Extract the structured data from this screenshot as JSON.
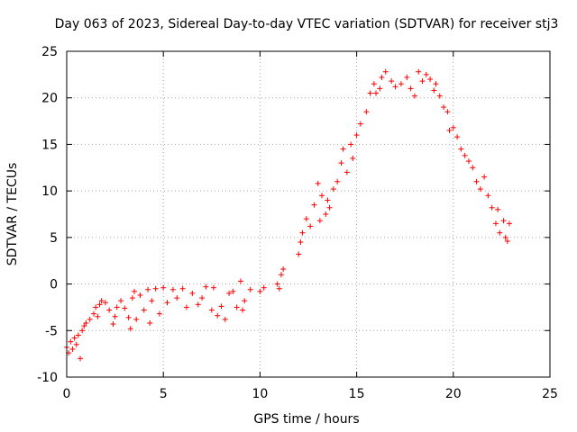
{
  "chart_data": {
    "type": "scatter",
    "title": "Day 063 of 2023, Sidereal Day-to-day VTEC variation (SDTVAR) for receiver stj3",
    "xlabel": "GPS time / hours",
    "ylabel": "SDTVAR / TECUs",
    "xlim": [
      0,
      25
    ],
    "ylim": [
      -10,
      25
    ],
    "xticks": [
      0,
      5,
      10,
      15,
      20,
      25
    ],
    "yticks": [
      -10,
      -5,
      0,
      5,
      10,
      15,
      20,
      25
    ],
    "grid": true,
    "marker": "+",
    "series_color": "#ff0000",
    "series": [
      {
        "name": "SDTVAR",
        "points": [
          [
            0.0,
            -6.8
          ],
          [
            0.1,
            -7.4
          ],
          [
            0.2,
            -6.2
          ],
          [
            0.3,
            -7.0
          ],
          [
            0.4,
            -5.8
          ],
          [
            0.5,
            -6.5
          ],
          [
            0.6,
            -5.5
          ],
          [
            0.7,
            -8.0
          ],
          [
            0.8,
            -5.0
          ],
          [
            0.9,
            -4.5
          ],
          [
            1.0,
            -4.2
          ],
          [
            1.2,
            -3.8
          ],
          [
            1.4,
            -3.2
          ],
          [
            1.5,
            -2.5
          ],
          [
            1.6,
            -3.5
          ],
          [
            1.7,
            -2.2
          ],
          [
            1.8,
            -1.8
          ],
          [
            2.0,
            -2.0
          ],
          [
            2.2,
            -2.8
          ],
          [
            2.4,
            -4.3
          ],
          [
            2.5,
            -3.5
          ],
          [
            2.6,
            -2.5
          ],
          [
            2.8,
            -1.8
          ],
          [
            3.0,
            -2.6
          ],
          [
            3.2,
            -3.6
          ],
          [
            3.3,
            -4.8
          ],
          [
            3.4,
            -1.5
          ],
          [
            3.5,
            -0.8
          ],
          [
            3.6,
            -3.8
          ],
          [
            3.8,
            -1.2
          ],
          [
            4.0,
            -2.8
          ],
          [
            4.2,
            -0.6
          ],
          [
            4.3,
            -4.2
          ],
          [
            4.4,
            -1.8
          ],
          [
            4.6,
            -0.5
          ],
          [
            4.8,
            -3.2
          ],
          [
            5.0,
            -0.4
          ],
          [
            5.2,
            -2.0
          ],
          [
            5.5,
            -0.6
          ],
          [
            5.7,
            -1.5
          ],
          [
            6.0,
            -0.5
          ],
          [
            6.2,
            -2.5
          ],
          [
            6.5,
            -1.0
          ],
          [
            6.8,
            -2.2
          ],
          [
            7.0,
            -1.5
          ],
          [
            7.2,
            -0.3
          ],
          [
            7.5,
            -2.8
          ],
          [
            7.6,
            -0.4
          ],
          [
            7.8,
            -3.4
          ],
          [
            8.0,
            -2.4
          ],
          [
            8.2,
            -3.8
          ],
          [
            8.4,
            -1.0
          ],
          [
            8.6,
            -0.8
          ],
          [
            8.8,
            -2.5
          ],
          [
            9.0,
            0.3
          ],
          [
            9.1,
            -2.8
          ],
          [
            9.2,
            -1.8
          ],
          [
            9.5,
            -0.6
          ],
          [
            10.0,
            -0.8
          ],
          [
            10.2,
            -0.4
          ],
          [
            10.9,
            0.0
          ],
          [
            11.0,
            -0.5
          ],
          [
            11.1,
            1.0
          ],
          [
            11.2,
            1.6
          ],
          [
            12.0,
            3.2
          ],
          [
            12.1,
            4.5
          ],
          [
            12.2,
            5.5
          ],
          [
            12.4,
            7.0
          ],
          [
            12.6,
            6.2
          ],
          [
            12.8,
            8.5
          ],
          [
            13.0,
            10.8
          ],
          [
            13.1,
            6.8
          ],
          [
            13.2,
            9.5
          ],
          [
            13.4,
            7.5
          ],
          [
            13.5,
            9.0
          ],
          [
            13.6,
            8.2
          ],
          [
            13.8,
            10.2
          ],
          [
            14.0,
            11.0
          ],
          [
            14.2,
            13.0
          ],
          [
            14.3,
            14.5
          ],
          [
            14.5,
            12.0
          ],
          [
            14.7,
            15.0
          ],
          [
            14.8,
            13.5
          ],
          [
            15.0,
            16.0
          ],
          [
            15.2,
            17.2
          ],
          [
            15.5,
            18.5
          ],
          [
            15.7,
            20.5
          ],
          [
            15.9,
            21.5
          ],
          [
            16.0,
            20.5
          ],
          [
            16.2,
            21.0
          ],
          [
            16.3,
            22.2
          ],
          [
            16.5,
            22.8
          ],
          [
            16.8,
            21.8
          ],
          [
            17.0,
            21.2
          ],
          [
            17.3,
            21.5
          ],
          [
            17.6,
            22.2
          ],
          [
            17.8,
            21.0
          ],
          [
            18.0,
            20.2
          ],
          [
            18.2,
            22.8
          ],
          [
            18.4,
            21.8
          ],
          [
            18.6,
            22.5
          ],
          [
            18.8,
            22.0
          ],
          [
            19.0,
            20.8
          ],
          [
            19.1,
            21.5
          ],
          [
            19.3,
            20.2
          ],
          [
            19.5,
            19.0
          ],
          [
            19.7,
            18.5
          ],
          [
            19.8,
            16.5
          ],
          [
            20.0,
            16.8
          ],
          [
            20.2,
            15.8
          ],
          [
            20.4,
            14.5
          ],
          [
            20.6,
            13.8
          ],
          [
            20.8,
            13.2
          ],
          [
            21.0,
            12.5
          ],
          [
            21.2,
            11.0
          ],
          [
            21.4,
            10.2
          ],
          [
            21.6,
            11.5
          ],
          [
            21.8,
            9.5
          ],
          [
            22.0,
            8.2
          ],
          [
            22.2,
            6.5
          ],
          [
            22.3,
            8.0
          ],
          [
            22.4,
            5.5
          ],
          [
            22.6,
            6.8
          ],
          [
            22.7,
            5.0
          ],
          [
            22.8,
            4.6
          ],
          [
            22.9,
            6.5
          ]
        ]
      }
    ]
  }
}
